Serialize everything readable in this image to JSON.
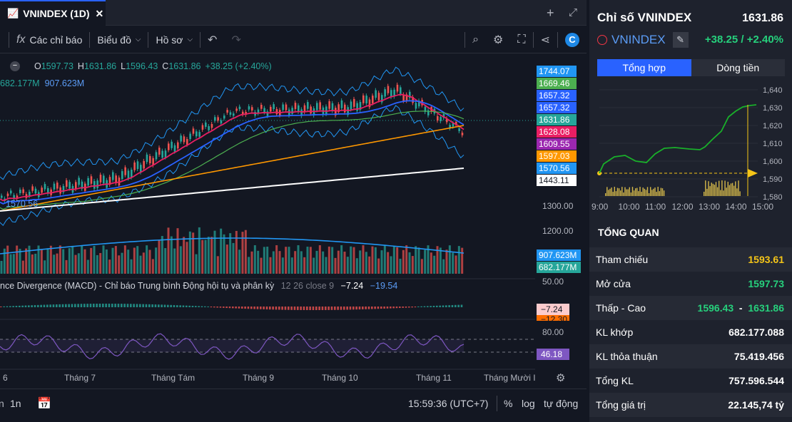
{
  "tab": {
    "title": "VNINDEX (1D)",
    "close": "✕"
  },
  "toolbar": {
    "indicators": "Các chỉ báo",
    "chart_type": "Biểu đồ",
    "profile": "Hồ sơ",
    "fx": "fx"
  },
  "legend": {
    "o_label": "O",
    "o": "1597.73",
    "h_label": "H",
    "h": "1631.86",
    "l_label": "L",
    "l": "1596.43",
    "c_label": "C",
    "c": "1631.86",
    "change": "+38.25 (+2.40%)",
    "volume_a": "682.177M",
    "volume_b": "907.623M",
    "low_label": "1570.56"
  },
  "macd_legend": {
    "title": "nce Divergence (MACD) - Chỉ báo Trung bình Động hội tụ và phân kỳ",
    "params": "12 26 close 9",
    "v1": "−7.24",
    "v2": "−19.54"
  },
  "price_tags": [
    {
      "text": "1744.07",
      "color": "#2196f3"
    },
    {
      "text": "1669.46",
      "color": "#4caf50"
    },
    {
      "text": "1657.32",
      "color": "#2962ff"
    },
    {
      "text": "1657.32",
      "color": "#2962ff"
    },
    {
      "text": "1631.86",
      "color": "#26a69a"
    },
    {
      "text": "1628.08",
      "color": "#e91e63"
    },
    {
      "text": "1609.55",
      "color": "#9c27b0"
    },
    {
      "text": "1597.03",
      "color": "#ff9800"
    },
    {
      "text": "1570.56",
      "color": "#2196f3"
    },
    {
      "text": "1443.11",
      "color": "#ffffff"
    }
  ],
  "axis": {
    "p1300": "1300.00",
    "p1200": "1200.00",
    "vol_tag_a": "907.623M",
    "vol_tag_b": "682.177M",
    "macd_top": "50.00",
    "macd_tag": "−7.24",
    "macd_tag2": "−12.30",
    "rsi_top": "80.00",
    "rsi_tag": "46.18"
  },
  "time_axis": [
    "g 6",
    "Tháng 7",
    "Tháng Tám",
    "Tháng 9",
    "Tháng 10",
    "Tháng 11",
    "Tháng Mười I"
  ],
  "bottom": {
    "range": "1n",
    "clock": "15:59:36 (UTC+7)",
    "pct": "%",
    "log": "log",
    "auto": "tự động"
  },
  "right_panel": {
    "title": "Chỉ số VNINDEX",
    "price": "1631.86",
    "symbol": "VNINDEX",
    "change": "+38.25 / +2.40%",
    "tabs": [
      "Tổng hợp",
      "Dòng tiền"
    ],
    "mini_y": [
      "1,640",
      "1,630",
      "1,620",
      "1,610",
      "1,600",
      "1,590",
      "1,580"
    ],
    "mini_x": [
      "9:00",
      "10:00",
      "11:00",
      "12:00",
      "13:00",
      "14:00",
      "15:00"
    ],
    "overview_title": "TỔNG QUAN",
    "rows": [
      {
        "k": "Tham chiếu",
        "v": "1593.61",
        "color": "#f5c518"
      },
      {
        "k": "Mở cửa",
        "v": "1597.73",
        "color": "#26d07c"
      },
      {
        "k": "Thấp - Cao",
        "v": "1596.43",
        "v2": "1631.86",
        "color": "#26d07c"
      },
      {
        "k": "KL khớp",
        "v": "682.177.088",
        "color": "#ffffff"
      },
      {
        "k": "KL thỏa thuận",
        "v": "75.419.456",
        "color": "#ffffff"
      },
      {
        "k": "Tổng KL",
        "v": "757.596.544",
        "color": "#ffffff"
      },
      {
        "k": "Tổng giá trị",
        "v": "22.145,74 tỷ",
        "color": "#ffffff"
      }
    ]
  }
}
